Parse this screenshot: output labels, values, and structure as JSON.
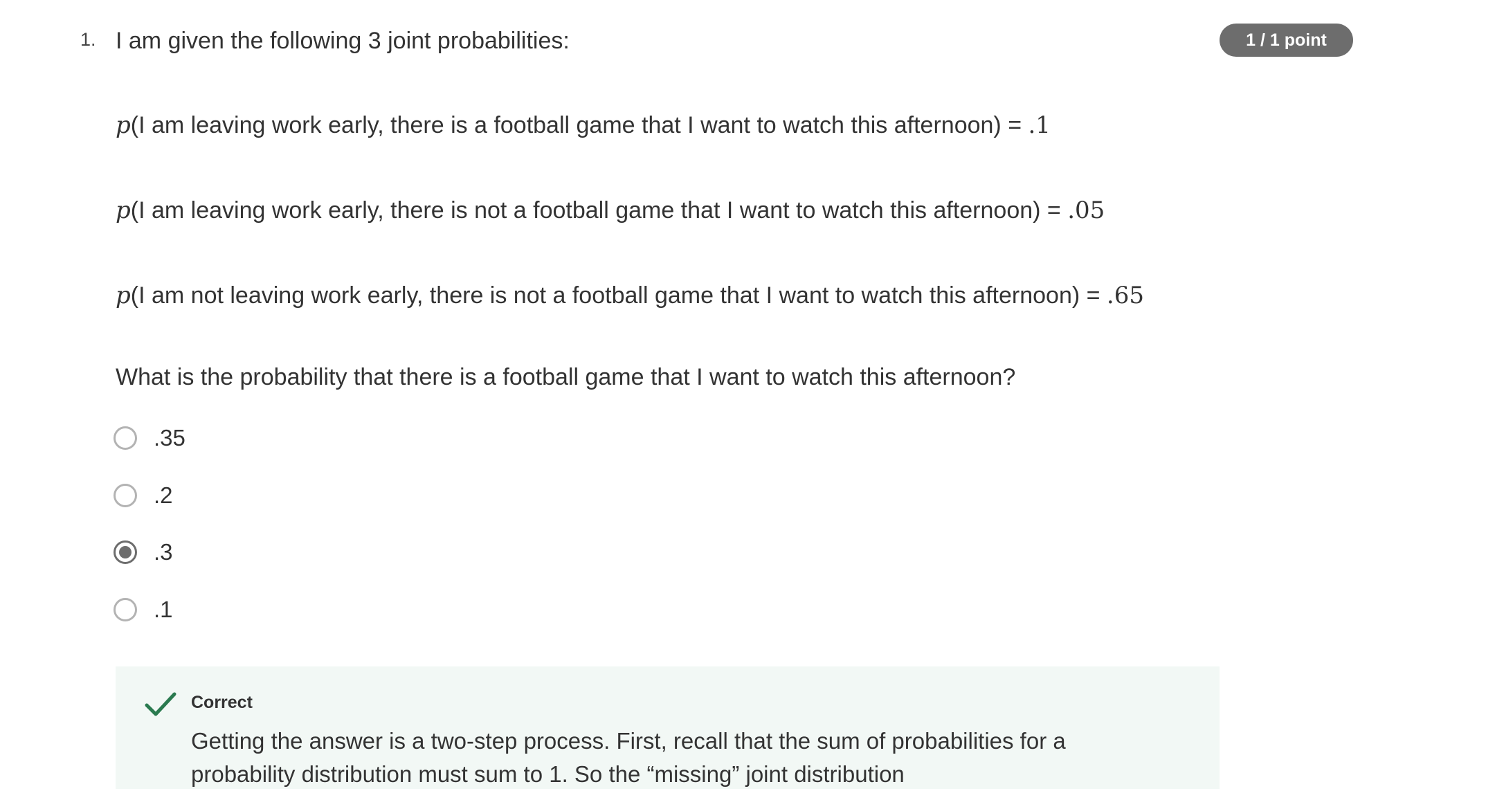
{
  "question": {
    "number": "1.",
    "prompt": "I am given the following 3 joint probabilities:",
    "points_badge": "1 / 1 point",
    "probabilities": [
      {
        "p": "p",
        "text": "(I am leaving work early, there is a football game that I want to watch this afternoon) = ",
        "value": ".1"
      },
      {
        "p": "p",
        "text": "(I am leaving work early, there is not a football game that I want to watch this afternoon) = ",
        "value": ".05"
      },
      {
        "p": "p",
        "text": "(I am not leaving work early, there is not a football game that I want to watch this afternoon) = ",
        "value": ".65"
      }
    ],
    "ask": "What is the probability that there is a football game that I want to watch this afternoon?",
    "options": [
      {
        "label": ".35",
        "selected": false
      },
      {
        "label": ".2",
        "selected": false
      },
      {
        "label": ".3",
        "selected": true
      },
      {
        "label": ".1",
        "selected": false
      }
    ]
  },
  "feedback": {
    "status": "Correct",
    "text": "Getting the answer is a two-step process. First, recall that the sum of probabilities for a probability distribution must sum to 1. So the “missing” joint distribution",
    "icon": "checkmark-icon",
    "accent_color": "#2a7a4f",
    "background_color": "#f2f8f5"
  }
}
